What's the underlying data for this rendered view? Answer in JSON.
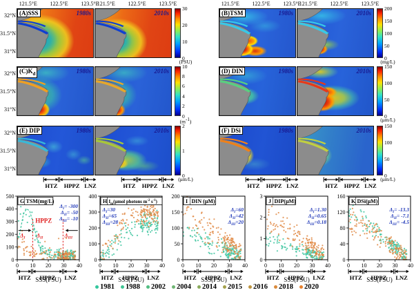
{
  "map_section": {
    "lon_ticks": [
      "121.5°E",
      "122.5°E",
      "123.5°E"
    ],
    "lat_ticks": [
      "32°N",
      "31.5°N",
      "31°N"
    ],
    "era_labels": [
      "1980s",
      "2010s"
    ],
    "zone_labels": [
      "HTZ",
      "HPPZ",
      "LNZ"
    ],
    "panels": [
      {
        "id": "A",
        "title": "(A)SSS",
        "cb_ticks": [
          "30",
          "20",
          "10",
          "0"
        ],
        "cb_unit": "(PSU)"
      },
      {
        "id": "B",
        "title": "(B)TSM",
        "cb_ticks": [
          "200",
          "150",
          "100",
          "50",
          "0"
        ],
        "cb_unit": "(mg/L)"
      },
      {
        "id": "C",
        "title": "(C)K_{d}",
        "cb_ticks": [
          "10",
          "8",
          "6",
          "4",
          "2",
          "0"
        ],
        "cb_unit": "(m^{-1})"
      },
      {
        "id": "D",
        "title": "(D) DIN",
        "cb_ticks": [
          "150",
          "100",
          "50",
          "0"
        ],
        "cb_unit": "(μm/L)"
      },
      {
        "id": "E",
        "title": "(E) DIP",
        "cb_ticks": [
          "2",
          "1",
          "0"
        ],
        "cb_unit": "(μm/L)"
      },
      {
        "id": "F",
        "title": "(F) DSi",
        "cb_ticks": [
          "150",
          "100",
          "50",
          "0"
        ],
        "cb_unit": "(μm/L)"
      }
    ]
  },
  "scatter_common": {
    "xlabel": "SSS(PSU)",
    "xlim": [
      0,
      40
    ],
    "xticks": [
      0,
      10,
      20,
      30,
      40
    ],
    "zones": {
      "labels": [
        "HTZ",
        "HPPZ",
        "LNZ"
      ],
      "bounds": [
        0,
        9.5,
        29.5
      ],
      "end": 39
    }
  },
  "chart_data": [
    {
      "id": "A",
      "type": "heatmap",
      "title": "(A)SSS",
      "eras": [
        "1980s",
        "2010s"
      ],
      "colorbar": {
        "range": [
          0,
          30
        ],
        "ticks": [
          0,
          10,
          20,
          30
        ],
        "unit": "PSU"
      },
      "description": "Sea surface salinity: low (blue) in Changjiang estuary mouth, high (red) offshore"
    },
    {
      "id": "B",
      "type": "heatmap",
      "title": "(B)TSM",
      "eras": [
        "1980s",
        "2010s"
      ],
      "colorbar": {
        "range": [
          0,
          200
        ],
        "ticks": [
          0,
          50,
          100,
          150,
          200
        ],
        "unit": "mg/L"
      },
      "description": "Total suspended matter: red maximum near south coast, weaker in 2010s"
    },
    {
      "id": "C",
      "type": "heatmap",
      "title": "(C)Kd",
      "eras": [
        "1980s",
        "2010s"
      ],
      "colorbar": {
        "range": [
          0,
          10
        ],
        "ticks": [
          0,
          2,
          4,
          6,
          8,
          10
        ],
        "unit": "m^-1"
      },
      "description": "Light attenuation coefficient: high in turbid channel and mouth"
    },
    {
      "id": "D",
      "type": "heatmap",
      "title": "(D) DIN",
      "eras": [
        "1980s",
        "2010s"
      ],
      "colorbar": {
        "range": [
          0,
          150
        ],
        "ticks": [
          0,
          50,
          100,
          150
        ],
        "unit": "μm/L"
      },
      "description": "Dissolved inorganic nitrogen: moderate green plume in 1980s, strong red plume in 2010s"
    },
    {
      "id": "E",
      "type": "heatmap",
      "title": "(E) DIP",
      "eras": [
        "1980s",
        "2010s"
      ],
      "colorbar": {
        "range": [
          0,
          2
        ],
        "ticks": [
          0,
          1,
          2
        ],
        "unit": "μm/L"
      },
      "description": "Dissolved inorganic phosphorus: low in 1980s, elevated plume in 2010s"
    },
    {
      "id": "F",
      "type": "heatmap",
      "title": "(F) DSi",
      "eras": [
        "1980s",
        "2010s"
      ],
      "colorbar": {
        "range": [
          0,
          150
        ],
        "ticks": [
          0,
          50,
          100,
          150
        ],
        "unit": "μm/L"
      },
      "description": "Dissolved silicate: high orange plume in 1980s, reduced in 2010s"
    },
    {
      "id": "G",
      "type": "scatter",
      "letter": "G",
      "title": "TSM(mg/L)",
      "xlabel": "SSS(PSU)",
      "xlim": [
        0,
        40
      ],
      "xticks": [
        0,
        10,
        20,
        30,
        40
      ],
      "ylim": [
        0,
        500
      ],
      "yticks": [
        0,
        100,
        200,
        300,
        400,
        500
      ],
      "annotations": [
        "Δ_{I}= -300",
        "Δ_{II}= -50",
        "Δ_{III}= -10"
      ],
      "ann_side": "right",
      "series": [
        {
          "name": "1980s",
          "color": "#3fc5a0",
          "trend": [
            [
              0,
              150
            ],
            [
              2,
              300
            ],
            [
              5,
              400
            ],
            [
              8,
              360
            ],
            [
              11,
              210
            ],
            [
              14,
              90
            ],
            [
              18,
              45
            ],
            [
              25,
              32
            ],
            [
              37,
              25
            ]
          ],
          "rel": 0.3,
          "abs": 45,
          "n": 150
        },
        {
          "name": "2010s",
          "color": "#e08a45",
          "trend": [
            [
              0,
              115
            ],
            [
              5,
              85
            ],
            [
              10,
              55
            ],
            [
              15,
              42
            ],
            [
              20,
              36
            ],
            [
              25,
              33
            ],
            [
              30,
              30
            ],
            [
              37,
              28
            ]
          ],
          "rel": 0.45,
          "abs": 28,
          "n": 150,
          "outlier": 0.06
        }
      ],
      "curve": [
        [
          1,
          170
        ],
        [
          4,
          360
        ],
        [
          6,
          400
        ],
        [
          8,
          385
        ],
        [
          10,
          300
        ],
        [
          12,
          200
        ],
        [
          14,
          110
        ],
        [
          17,
          55
        ],
        [
          22,
          35
        ],
        [
          30,
          28
        ],
        [
          36,
          25
        ]
      ],
      "extra": {
        "vlines": [
          10,
          29.5
        ],
        "zone_text": "HPPZ",
        "arrow_labels": [
          "Δ_{I}",
          "Δ_{II}",
          "Δ_{III}"
        ]
      }
    },
    {
      "id": "H",
      "type": "scatter",
      "letter": "H",
      "title": "I_{m}(μmol photons m^{-2} s^{-1})",
      "xlabel": "SSS(PSU)",
      "xlim": [
        0,
        40
      ],
      "xticks": [
        0,
        10,
        20,
        30,
        40
      ],
      "ylim": [
        0,
        400
      ],
      "yticks": [
        0,
        100,
        200,
        300,
        400
      ],
      "annotations": [
        "Δ_{I}=30",
        "Δ_{II}=65",
        "Δ_{III}=28"
      ],
      "ann_side": "left",
      "series": [
        {
          "name": "1980s",
          "color": "#3fc5a0",
          "trend": [
            [
              0,
              15
            ],
            [
              5,
              45
            ],
            [
              10,
              95
            ],
            [
              15,
              155
            ],
            [
              20,
              200
            ],
            [
              25,
              215
            ],
            [
              30,
              225
            ],
            [
              37,
              228
            ]
          ],
          "rel": 0.2,
          "abs": 45,
          "n": 150
        },
        {
          "name": "2010s",
          "color": "#e08a45",
          "trend": [
            [
              0,
              25
            ],
            [
              5,
              75
            ],
            [
              10,
              150
            ],
            [
              15,
              235
            ],
            [
              20,
              285
            ],
            [
              25,
              300
            ],
            [
              30,
              295
            ],
            [
              37,
              288
            ]
          ],
          "rel": 0.15,
          "abs": 50,
          "n": 150
        }
      ]
    },
    {
      "id": "I",
      "type": "scatter",
      "letter": "I",
      "title": "DIN (μM)",
      "xlabel": "SSS(PSU)",
      "xlim": [
        0,
        40
      ],
      "xticks": [
        0,
        10,
        20,
        30,
        40
      ],
      "ylim": [
        0,
        200
      ],
      "yticks": [
        0,
        50,
        100,
        150,
        200
      ],
      "annotations": [
        "Δ_{I}=60",
        "Δ_{II}=42",
        "Δ_{III}=20"
      ],
      "ann_side": "right",
      "series": [
        {
          "name": "1980s",
          "color": "#3fc5a0",
          "trend": [
            [
              0,
              95
            ],
            [
              10,
              70
            ],
            [
              20,
              45
            ],
            [
              30,
              25
            ],
            [
              37,
              12
            ]
          ],
          "rel": 0.25,
          "abs": 22,
          "n": 150
        },
        {
          "name": "2010s",
          "color": "#e08a45",
          "trend": [
            [
              0,
              160
            ],
            [
              10,
              118
            ],
            [
              20,
              82
            ],
            [
              30,
              45
            ],
            [
              37,
              22
            ]
          ],
          "rel": 0.25,
          "abs": 28,
          "n": 150
        }
      ]
    },
    {
      "id": "J",
      "type": "scatter",
      "letter": "J",
      "title": "DIP(μM)",
      "xlabel": "SSS(PSU)",
      "xlim": [
        0,
        40
      ],
      "xticks": [
        0,
        10,
        20,
        30,
        40
      ],
      "ylim": [
        0,
        3
      ],
      "yticks": [
        0,
        1,
        2,
        3
      ],
      "annotations": [
        "Δ_{I}=1.30",
        "Δ_{II}=0.65",
        "Δ_{III}=0.18"
      ],
      "ann_side": "right",
      "series": [
        {
          "name": "1980s",
          "color": "#3fc5a0",
          "trend": [
            [
              0,
              1.0
            ],
            [
              10,
              0.75
            ],
            [
              20,
              0.5
            ],
            [
              30,
              0.3
            ],
            [
              37,
              0.15
            ]
          ],
          "rel": 0.3,
          "abs": 0.22,
          "n": 140
        },
        {
          "name": "2010s",
          "color": "#e08a45",
          "trend": [
            [
              0,
              2.15
            ],
            [
              10,
              1.6
            ],
            [
              20,
              1.1
            ],
            [
              30,
              0.6
            ],
            [
              37,
              0.3
            ]
          ],
          "rel": 0.3,
          "abs": 0.35,
          "n": 150
        }
      ]
    },
    {
      "id": "K",
      "type": "scatter",
      "letter": "K",
      "title": "DSi(μM)",
      "xlabel": "SSS(PSU)",
      "xlim": [
        0,
        40
      ],
      "xticks": [
        0,
        10,
        20,
        30,
        40
      ],
      "ylim": [
        0,
        160
      ],
      "yticks": [
        0,
        40,
        80,
        120,
        160
      ],
      "annotations": [
        "Δ_{I}= -13.3",
        "Δ_{II}= -7.1",
        "Δ_{III}= -4.5"
      ],
      "ann_side": "right",
      "series": [
        {
          "name": "1980s",
          "color": "#3fc5a0",
          "trend": [
            [
              0,
              113
            ],
            [
              10,
              95
            ],
            [
              20,
              65
            ],
            [
              30,
              32
            ],
            [
              37,
              12
            ]
          ],
          "rel": 0.18,
          "abs": 16,
          "n": 150
        },
        {
          "name": "2010s",
          "color": "#e08a45",
          "trend": [
            [
              0,
              100
            ],
            [
              10,
              85
            ],
            [
              20,
              60
            ],
            [
              30,
              26
            ],
            [
              37,
              8
            ]
          ],
          "rel": 0.22,
          "abs": 18,
          "n": 150
        }
      ]
    }
  ],
  "legend": {
    "items": [
      {
        "year": "1981",
        "color": "#35c79e"
      },
      {
        "year": "1988",
        "color": "#3fc493"
      },
      {
        "year": "2002",
        "color": "#52bd82"
      },
      {
        "year": "2004",
        "color": "#6fb573"
      },
      {
        "year": "2014",
        "color": "#8aab5c"
      },
      {
        "year": "2015",
        "color": "#a4a04b"
      },
      {
        "year": "2016",
        "color": "#bd9440"
      },
      {
        "year": "2018",
        "color": "#d98a3c"
      },
      {
        "year": "2020",
        "color": "#e8822f"
      }
    ]
  },
  "colors": {
    "era_label": "#18188f",
    "annotation_blue": "#2038b8",
    "zone_red": "#e02020",
    "land_gray": "#8c8c8c",
    "teal_series": "#3fc5a0",
    "orange_series": "#e08a45"
  }
}
